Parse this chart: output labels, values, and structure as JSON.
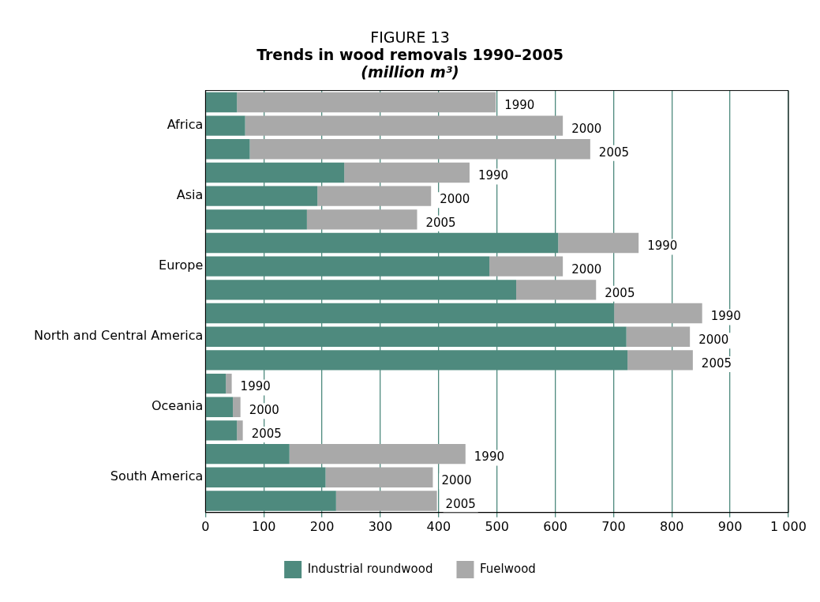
{
  "chart_data": {
    "type": "bar",
    "orientation": "horizontal",
    "stacked": true,
    "title": "FIGURE 13",
    "subtitle": "Trends in wood removals 1990–2005",
    "categories": [
      null,
      "Africa",
      null,
      null,
      "Asia",
      null,
      null,
      "Europe",
      null,
      null,
      "North and Central America",
      null,
      null,
      "Oceania",
      null,
      null,
      "South America",
      null
    ],
    "series": [
      {
        "name": "Industrial roundwood",
        "color": "#4e8a7e",
        "values": [
          54,
          68,
          76,
          238,
          192,
          174,
          605,
          487,
          533,
          701,
          722,
          724,
          35,
          47,
          54,
          144,
          206,
          224
        ]
      },
      {
        "name": "Fuelwood",
        "color": "#a9a9a9",
        "values": [
          444,
          545,
          584,
          215,
          195,
          189,
          138,
          126,
          137,
          151,
          109,
          112,
          10,
          13,
          10,
          302,
          184,
          173
        ]
      }
    ],
    "xlim": [
      0,
      1000
    ],
    "xticks": [
      0,
      100,
      200,
      300,
      400,
      500,
      600,
      700,
      800,
      900,
      {
        "value": 1000,
        "label": "1 000"
      }
    ],
    "grid": "x",
    "legend": "bottom",
    "annotations": [
      "(million m³)",
      "1990",
      "2000",
      "2005",
      "1990",
      "2000",
      "2005",
      "1990",
      "2000",
      "2005",
      "1990",
      "2000",
      "2005",
      "1990",
      "2000",
      "2005",
      "1990",
      "2000",
      "2005"
    ]
  }
}
